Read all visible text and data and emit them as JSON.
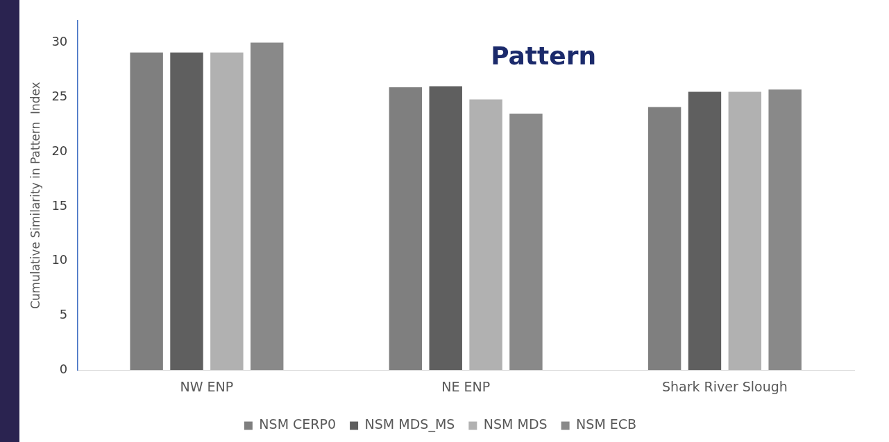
{
  "chart_data": {
    "type": "bar",
    "title": "Pattern",
    "ylabel": "Cumulative Similarity in Pattern  Index",
    "categories": [
      "NW ENP",
      "NE ENP",
      "Shark River Slough"
    ],
    "series": [
      {
        "name": "NSM CERP0",
        "color": "#7f7f7f",
        "values": [
          29.1,
          25.9,
          24.1
        ]
      },
      {
        "name": "NSM MDS_MS",
        "color": "#5f5f5f",
        "values": [
          29.1,
          26.0,
          25.5
        ]
      },
      {
        "name": "NSM MDS",
        "color": "#b1b1b1",
        "values": [
          29.1,
          24.8,
          25.5
        ]
      },
      {
        "name": "NSM ECB",
        "color": "#898989",
        "values": [
          30.0,
          23.5,
          25.7
        ]
      }
    ],
    "ylim": [
      0,
      32
    ],
    "yticks": [
      0,
      5,
      10,
      15,
      20,
      25,
      30
    ],
    "grid": false,
    "legend": "bottom"
  }
}
